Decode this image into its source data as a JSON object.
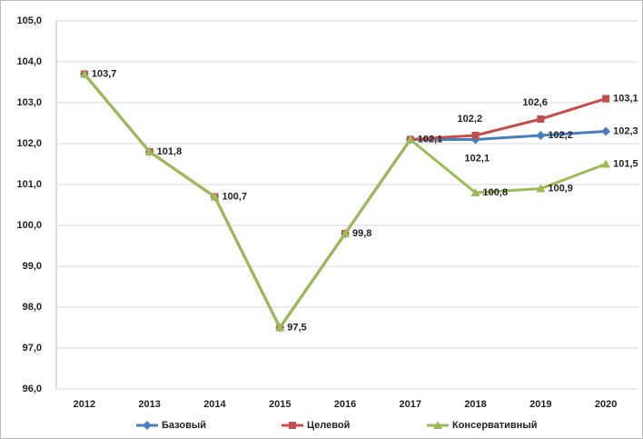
{
  "chart_data": {
    "type": "line",
    "categories": [
      "2012",
      "2013",
      "2014",
      "2015",
      "2016",
      "2017",
      "2018",
      "2019",
      "2020"
    ],
    "ylim": [
      96,
      105
    ],
    "yticks": [
      {
        "value": 96,
        "label": "96,0"
      },
      {
        "value": 97,
        "label": "97,0"
      },
      {
        "value": 98,
        "label": "98,0"
      },
      {
        "value": 99,
        "label": "99,0"
      },
      {
        "value": 100,
        "label": "100,0"
      },
      {
        "value": 101,
        "label": "101,0"
      },
      {
        "value": 102,
        "label": "102,0"
      },
      {
        "value": 103,
        "label": "103,0"
      },
      {
        "value": 104,
        "label": "104,0"
      },
      {
        "value": 105,
        "label": "105,0"
      }
    ],
    "grid": true,
    "legend": "bottom",
    "series": [
      {
        "name": "Базовый",
        "color": "#4a7ebb",
        "marker": "diamond",
        "values": [
          103.7,
          101.8,
          100.7,
          97.5,
          99.8,
          102.1,
          102.1,
          102.2,
          102.3
        ],
        "value_labels": [
          null,
          null,
          null,
          null,
          null,
          null,
          "102,1",
          "102,2",
          "102,3"
        ]
      },
      {
        "name": "Целевой",
        "color": "#c0504d",
        "marker": "square",
        "values": [
          103.7,
          101.8,
          100.7,
          97.5,
          99.8,
          102.1,
          102.2,
          102.6,
          103.1
        ],
        "value_labels": [
          null,
          null,
          null,
          null,
          null,
          null,
          "102,2",
          "102,6",
          "103,1"
        ]
      },
      {
        "name": "Консервативный",
        "color": "#9bbb59",
        "marker": "triangle",
        "values": [
          103.7,
          101.8,
          100.7,
          97.5,
          99.8,
          102.1,
          100.8,
          100.9,
          101.5
        ],
        "value_labels": [
          "103,7",
          "101,8",
          "100,7",
          "97,5",
          "99,8",
          "102,1",
          "100,8",
          "100,9",
          "101,5"
        ]
      }
    ]
  }
}
